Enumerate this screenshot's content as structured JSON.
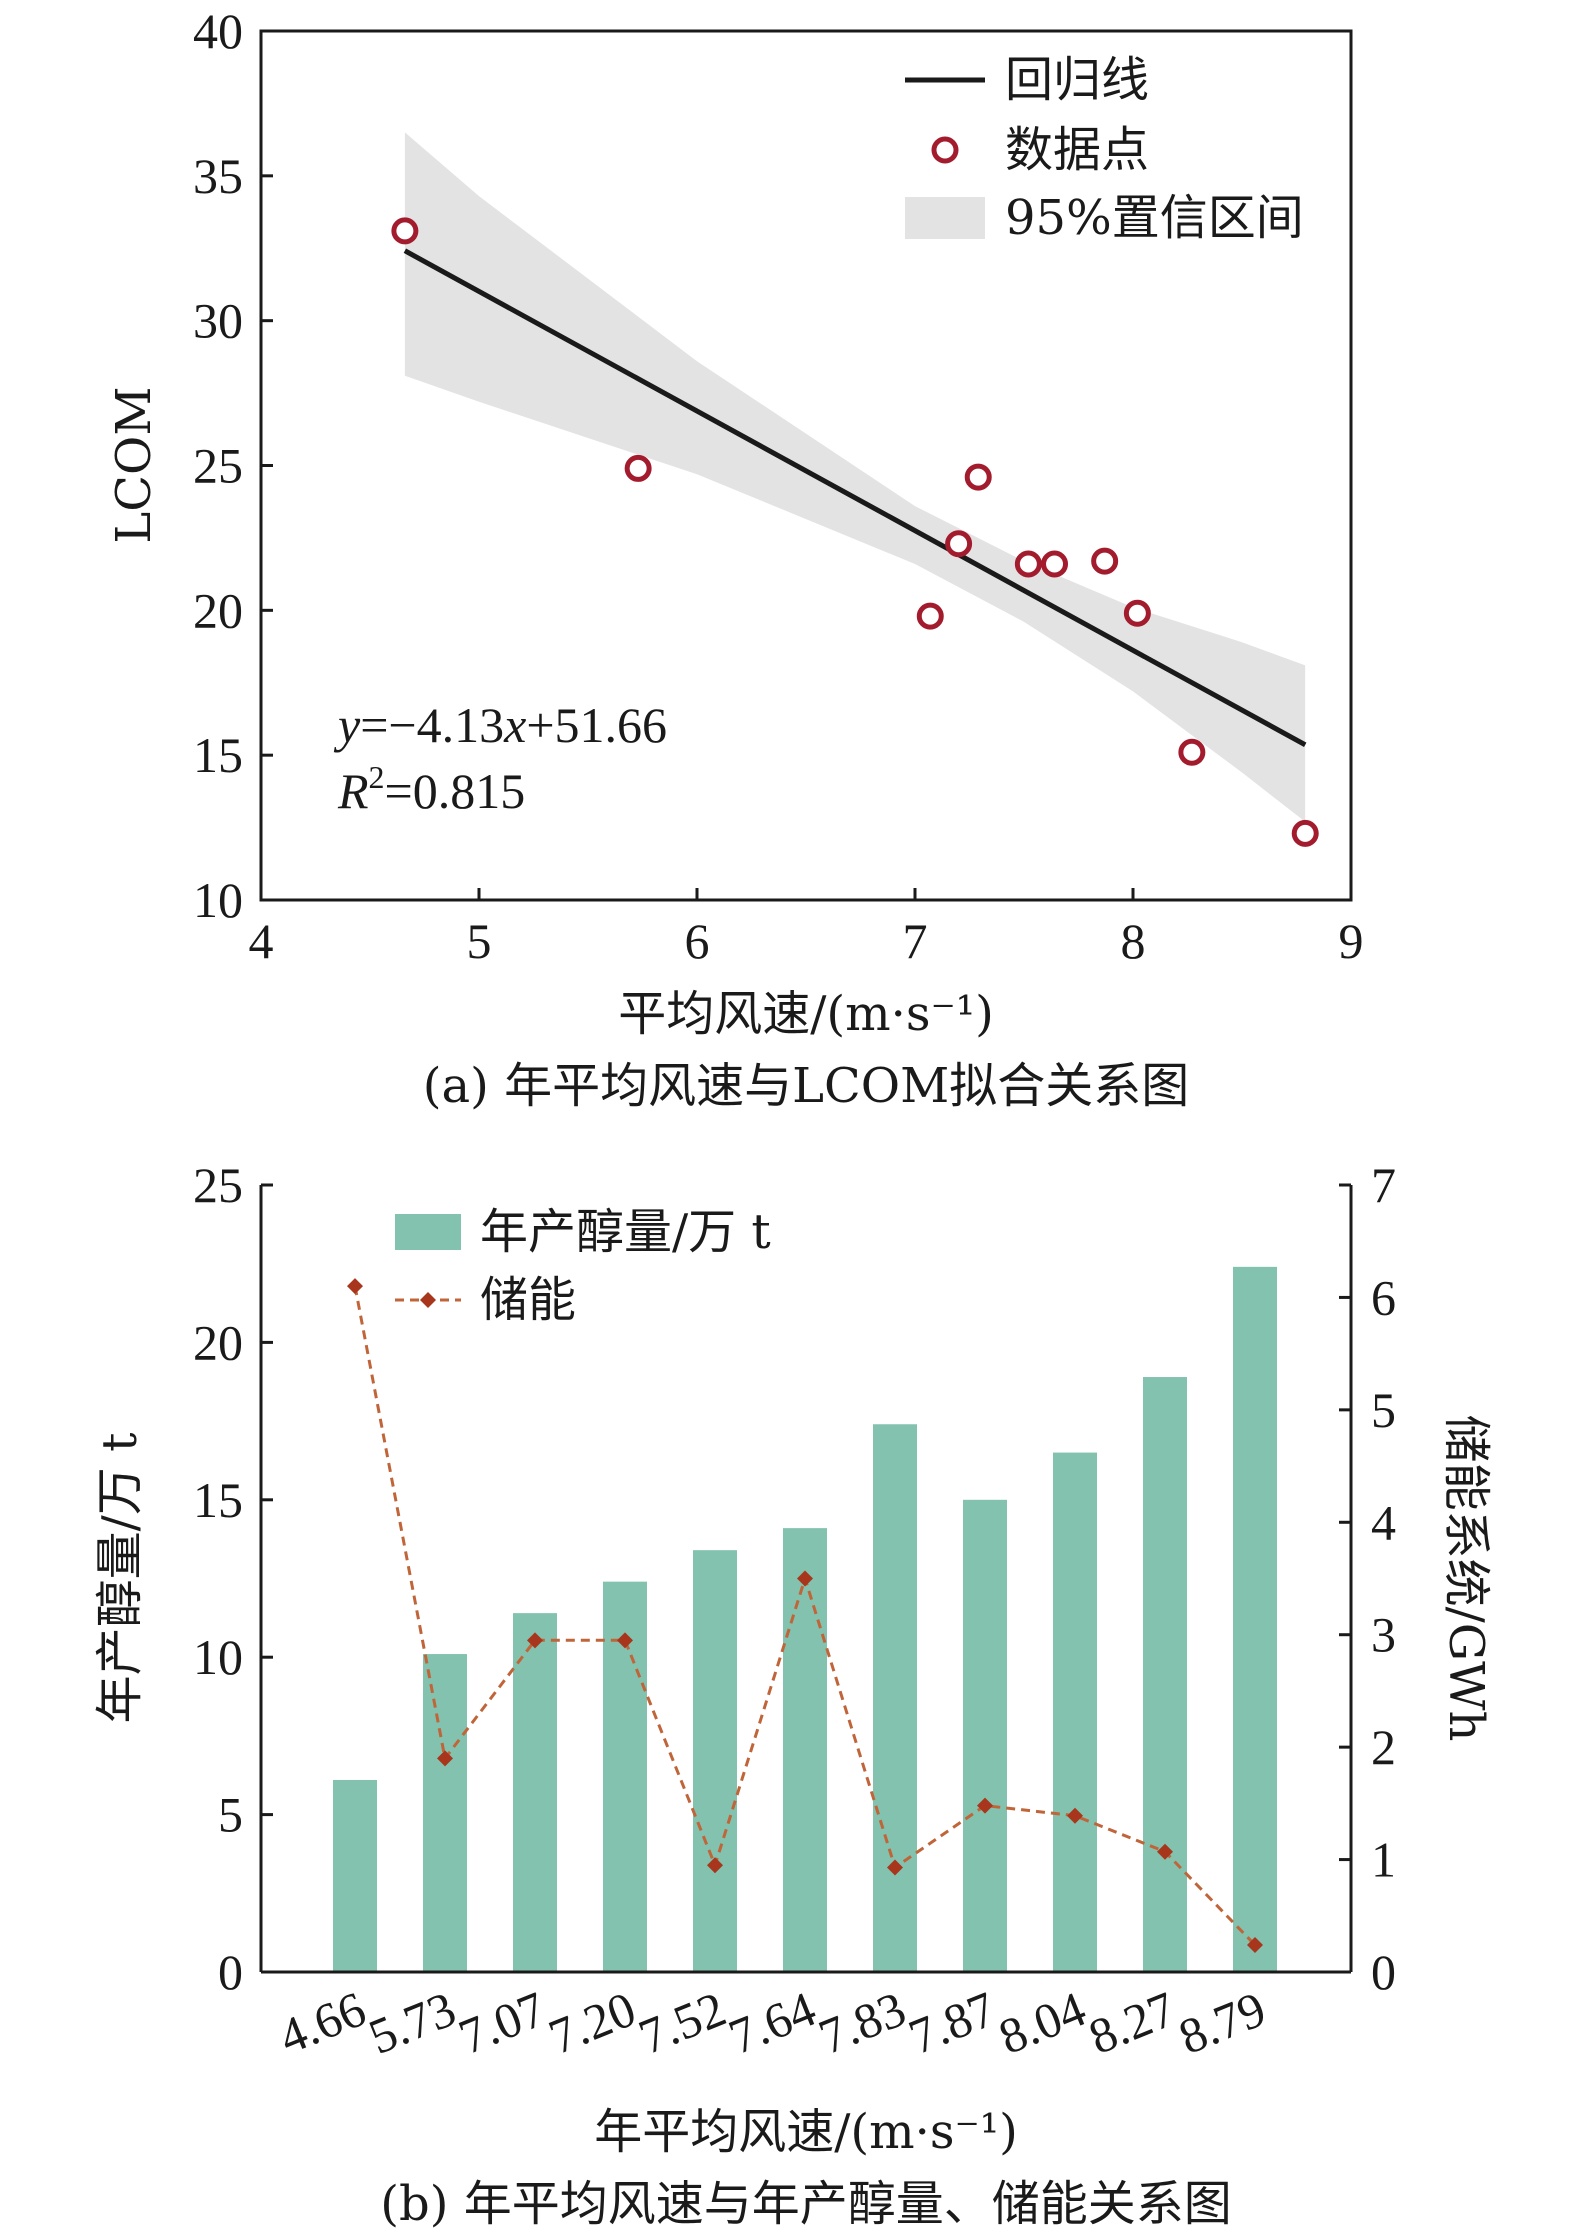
{
  "chart_data": [
    {
      "type": "scatter",
      "panel": "a",
      "caption": "(a) 年平均风速与LCOM拟合关系图",
      "xlabel": "平均风速/(m·s⁻¹)",
      "ylabel": "LCOM",
      "xlim": [
        4,
        9
      ],
      "ylim": [
        10,
        40
      ],
      "xticks": [
        "4",
        "5",
        "6",
        "7",
        "8",
        "9"
      ],
      "yticks": [
        "10",
        "15",
        "20",
        "25",
        "30",
        "35",
        "40"
      ],
      "points": [
        {
          "x": 4.66,
          "y": 33.1
        },
        {
          "x": 5.73,
          "y": 24.9
        },
        {
          "x": 7.07,
          "y": 19.8
        },
        {
          "x": 7.2,
          "y": 22.3
        },
        {
          "x": 7.29,
          "y": 24.6
        },
        {
          "x": 7.52,
          "y": 21.6
        },
        {
          "x": 7.64,
          "y": 21.6
        },
        {
          "x": 7.87,
          "y": 21.7
        },
        {
          "x": 8.02,
          "y": 19.9
        },
        {
          "x": 8.27,
          "y": 15.1
        },
        {
          "x": 8.79,
          "y": 12.3
        }
      ],
      "regression": {
        "slope": -4.13,
        "intercept": 51.66,
        "x_range": [
          4.66,
          8.79
        ]
      },
      "ci_band": {
        "x": [
          4.66,
          5.0,
          6.0,
          7.0,
          7.5,
          8.0,
          8.5,
          8.79
        ],
        "upper": [
          36.5,
          34.3,
          28.6,
          23.6,
          21.7,
          20.1,
          18.9,
          18.1
        ],
        "lower": [
          28.1,
          27.2,
          24.7,
          21.6,
          19.6,
          17.2,
          14.4,
          12.7
        ]
      },
      "equation": {
        "prefix": "y",
        "rest": "=−4.13",
        "var": "x",
        "tail": "+51.66"
      },
      "r2": {
        "prefix": "R",
        "sup": "2",
        "rest": "=0.815"
      },
      "legend": {
        "position": "top-right",
        "items": [
          "回归线",
          "数据点",
          "95%置信区间"
        ]
      },
      "colors": {
        "line": "#1a1a1a",
        "point": "#a31c2e",
        "band": "#e3e3e3"
      }
    },
    {
      "type": "bar",
      "panel": "b",
      "caption": "(b) 年平均风速与年产醇量、储能关系图",
      "xlabel": "年平均风速/(m·s⁻¹)",
      "ylabel": "年产醇量/万 t",
      "y2label": "储能系统/GWh",
      "categories": [
        "4.66",
        "5.73",
        "7.07",
        "7.20",
        "7.52",
        "7.64",
        "7.83",
        "7.87",
        "8.04",
        "8.27",
        "8.79"
      ],
      "ylim": [
        0,
        25
      ],
      "y2lim": [
        0,
        7
      ],
      "yticks": [
        "0",
        "5",
        "10",
        "15",
        "20",
        "25"
      ],
      "y2ticks": [
        "0",
        "1",
        "2",
        "3",
        "4",
        "5",
        "6",
        "7"
      ],
      "series": [
        {
          "name": "年产醇量/万 t",
          "axis": "left",
          "kind": "bar",
          "values": [
            6.1,
            10.1,
            11.4,
            12.4,
            13.4,
            14.1,
            17.4,
            15.0,
            16.5,
            18.9,
            22.4
          ]
        },
        {
          "name": "储能",
          "axis": "right",
          "kind": "line-dashed",
          "values": [
            6.1,
            1.9,
            2.95,
            2.95,
            0.95,
            3.5,
            0.93,
            1.48,
            1.39,
            1.07,
            0.24
          ]
        }
      ],
      "legend": {
        "position": "top-left"
      },
      "colors": {
        "bar": "#82c2ae",
        "line": "#c0653a",
        "marker": "#a8361c"
      }
    }
  ]
}
